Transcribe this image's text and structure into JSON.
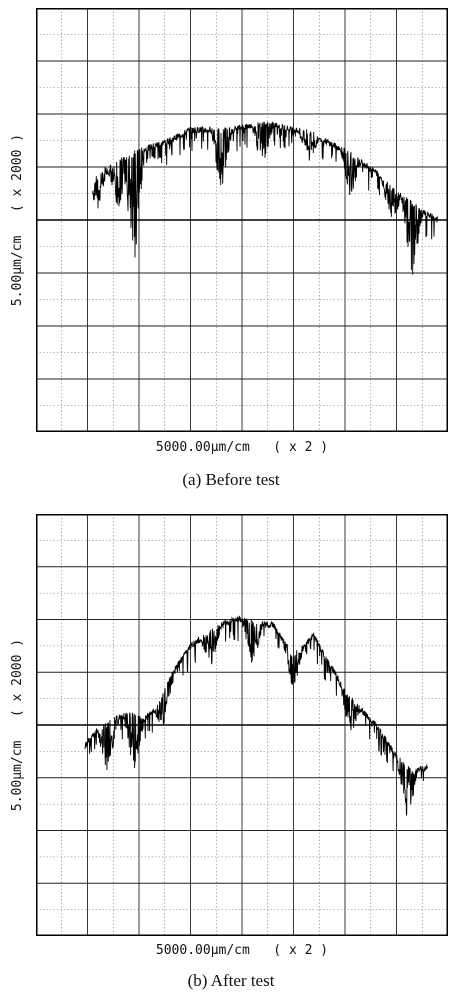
{
  "chart_data": [
    {
      "type": "line",
      "title": "",
      "caption": "(a) Before test",
      "xlabel": "5000.00μm/cm   ( x 2 )",
      "ylabel": "5.00μm/cm   ( x 2000 )",
      "grid": true,
      "xlim": [
        0,
        8
      ],
      "ylim": [
        -4,
        4
      ],
      "series": [
        {
          "x": [
            1.1,
            1.3,
            1.6,
            1.8,
            2.0,
            2.3,
            2.6,
            2.8,
            3.0,
            3.3,
            3.6,
            3.8,
            4.0,
            4.3,
            4.6,
            4.8,
            5.0,
            5.3,
            5.6,
            5.8,
            6.0,
            6.3,
            6.6,
            6.8,
            7.0,
            7.3,
            7.5,
            7.8
          ],
          "y": [
            0.7,
            0.9,
            1.1,
            1.2,
            1.3,
            1.4,
            1.5,
            1.6,
            1.7,
            1.7,
            1.7,
            1.7,
            1.75,
            1.8,
            1.8,
            1.75,
            1.7,
            1.65,
            1.5,
            1.4,
            1.3,
            1.1,
            0.9,
            0.7,
            0.5,
            0.3,
            0.15,
            0.0
          ],
          "dips": [
            {
              "x": 1.2,
              "depth": 0.5
            },
            {
              "x": 1.6,
              "depth": 0.8
            },
            {
              "x": 1.9,
              "depth": 1.9
            },
            {
              "x": 3.6,
              "depth": 1.0
            },
            {
              "x": 4.4,
              "depth": 0.8
            },
            {
              "x": 5.3,
              "depth": 0.5
            },
            {
              "x": 6.1,
              "depth": 0.7
            },
            {
              "x": 6.9,
              "depth": 0.6
            },
            {
              "x": 7.3,
              "depth": 1.2
            }
          ]
        }
      ]
    },
    {
      "type": "line",
      "title": "",
      "caption": "(b) After test",
      "xlabel": "5000.00μm/cm   ( x 2 )",
      "ylabel": "5.00μm/cm   ( x 2000 )",
      "grid": true,
      "xlim": [
        0,
        8
      ],
      "ylim": [
        -4,
        4
      ],
      "series": [
        {
          "x": [
            0.95,
            1.2,
            1.5,
            1.8,
            2.1,
            2.4,
            2.6,
            2.8,
            3.0,
            3.3,
            3.6,
            3.9,
            4.1,
            4.3,
            4.6,
            4.8,
            5.0,
            5.2,
            5.4,
            5.6,
            5.8,
            6.0,
            6.3,
            6.6,
            6.8,
            7.0,
            7.3,
            7.6
          ],
          "y": [
            -0.4,
            -0.1,
            0.1,
            0.2,
            0.1,
            0.4,
            0.9,
            1.2,
            1.5,
            1.7,
            1.9,
            2.0,
            2.0,
            1.9,
            1.9,
            1.6,
            1.3,
            1.5,
            1.7,
            1.3,
            1.0,
            0.6,
            0.3,
            0.0,
            -0.3,
            -0.6,
            -0.9,
            -0.8
          ],
          "dips": [
            {
              "x": 1.4,
              "depth": 0.9
            },
            {
              "x": 1.9,
              "depth": 0.9
            },
            {
              "x": 2.5,
              "depth": 0.6
            },
            {
              "x": 3.4,
              "depth": 0.6
            },
            {
              "x": 4.2,
              "depth": 0.7
            },
            {
              "x": 5.0,
              "depth": 0.6
            },
            {
              "x": 6.1,
              "depth": 0.6
            },
            {
              "x": 7.2,
              "depth": 0.9
            }
          ]
        }
      ]
    }
  ]
}
